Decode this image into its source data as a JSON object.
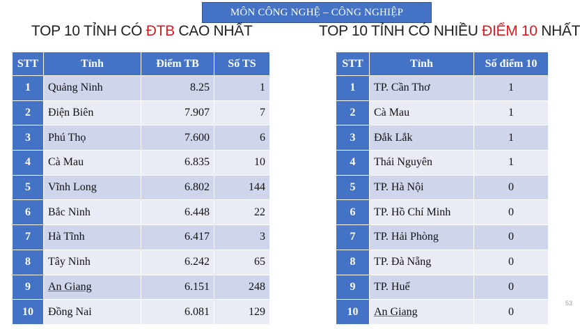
{
  "banner": "MÔN CÔNG NGHỆ – CÔNG NGHIỆP",
  "left_heading": {
    "pre": "TOP 10 TỈNH CÓ ",
    "highlight": "ĐTB",
    "post": " CAO NHẤT"
  },
  "right_heading": {
    "pre": "TOP 10 TỈNH CÓ NHIỀU ",
    "highlight": "ĐIỂM 10",
    "post": " NHẤT"
  },
  "left_table": {
    "headers": [
      "STT",
      "Tỉnh",
      "Điểm TB",
      "Số TS"
    ],
    "rows": [
      {
        "stt": "1",
        "province": "Quảng Ninh",
        "avg": "8.25",
        "count": "1"
      },
      {
        "stt": "2",
        "province": "Điện Biên",
        "avg": "7.907",
        "count": "7"
      },
      {
        "stt": "3",
        "province": "Phú Thọ",
        "avg": "7.600",
        "count": "6"
      },
      {
        "stt": "4",
        "province": "Cà Mau",
        "avg": "6.835",
        "count": "10"
      },
      {
        "stt": "5",
        "province": "Vĩnh Long",
        "avg": "6.802",
        "count": "144"
      },
      {
        "stt": "6",
        "province": "Bắc Ninh",
        "avg": "6.448",
        "count": "22"
      },
      {
        "stt": "7",
        "province": "Hà Tĩnh",
        "avg": "6.417",
        "count": "3"
      },
      {
        "stt": "8",
        "province": "Tây Ninh",
        "avg": "6.242",
        "count": "65"
      },
      {
        "stt": "9",
        "province": "An Giang",
        "avg": "6.151",
        "count": "248"
      },
      {
        "stt": "10",
        "province": "Đồng Nai",
        "avg": "6.081",
        "count": "129"
      }
    ]
  },
  "right_table": {
    "headers": [
      "STT",
      "Tỉnh",
      "Số điểm 10"
    ],
    "rows": [
      {
        "stt": "1",
        "province": "TP. Cần Thơ",
        "tens": "1"
      },
      {
        "stt": "2",
        "province": "Cà Mau",
        "tens": "1"
      },
      {
        "stt": "3",
        "province": "Đắk Lắk",
        "tens": "1"
      },
      {
        "stt": "4",
        "province": "Thái Nguyên",
        "tens": "1"
      },
      {
        "stt": "5",
        "province": "TP. Hà Nội",
        "tens": "0"
      },
      {
        "stt": "6",
        "province": "TP. Hồ Chí Minh",
        "tens": "0"
      },
      {
        "stt": "7",
        "province": "TP. Hải Phòng",
        "tens": "0"
      },
      {
        "stt": "8",
        "province": "TP. Đà Nẵng",
        "tens": "0"
      },
      {
        "stt": "9",
        "province": "TP. Huế",
        "tens": "0"
      },
      {
        "stt": "10",
        "province": "An Giang",
        "tens": "0"
      }
    ]
  },
  "page_number": "53"
}
